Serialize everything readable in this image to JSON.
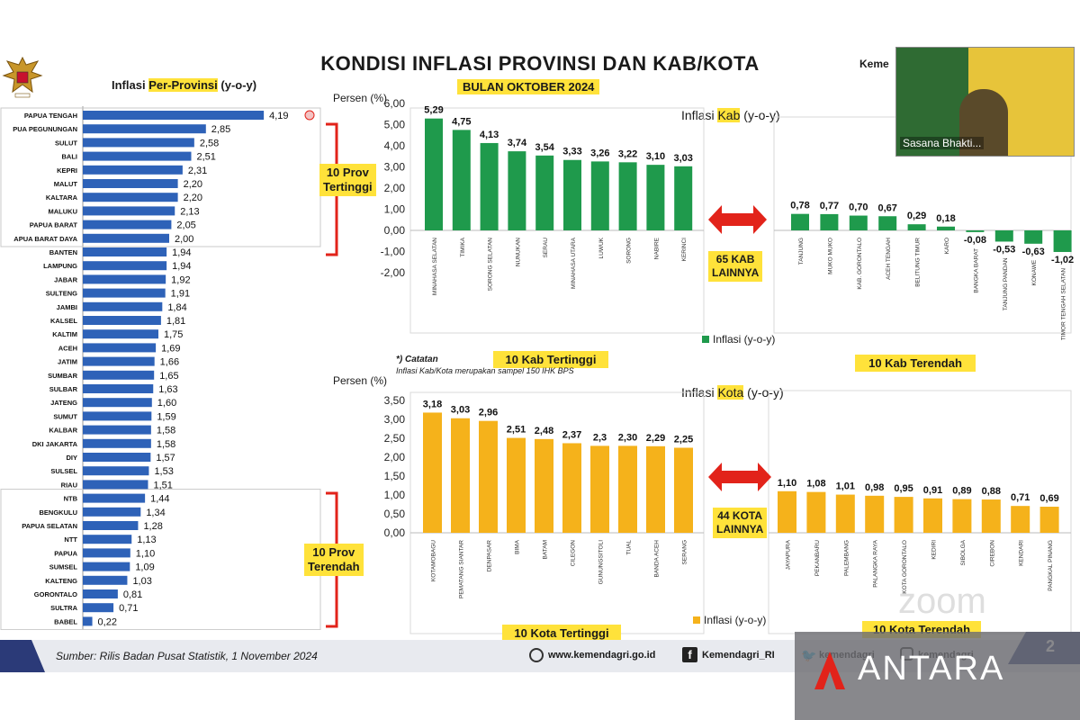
{
  "header": {
    "title": "KONDISI INFLASI PROVINSI DAN KAB/KOTA",
    "subtitle": "BULAN OKTOBER 2024",
    "top_right": "Keme"
  },
  "prov_panel": {
    "title_pre": "Inflasi ",
    "title_hl": "Per-Provinsi",
    "title_post": " (y-o-y)",
    "top_label": "10 Prov\nTertinggi",
    "bottom_label": "10 Prov\nTerendah"
  },
  "kab_panel": {
    "unit": "Persen (%)",
    "title_pre": "Inflasi ",
    "title_hl": "Kab",
    "title_post": " (y-o-y)",
    "middle_label": "65 KAB\nLAINNYA",
    "legend": "Inflasi (y-o-y)",
    "high_caption": "10 Kab Tertinggi",
    "low_caption": "10 Kab Terendah",
    "note_title": "*) Catatan",
    "note_text": "Inflasi Kab/Kota merupakan sampel 150 IHK BPS"
  },
  "kota_panel": {
    "unit": "Persen (%)",
    "title_pre": "Inflasi ",
    "title_hl": "Kota",
    "title_post": " (y-o-y)",
    "middle_label": "44 KOTA\nLAINNYA",
    "legend": "Inflasi (y-o-y)",
    "high_caption": "10 Kota Tertinggi",
    "low_caption": "10 Kota Terendah"
  },
  "footer": {
    "source": "Sumber: Rilis Badan Pusat Statistik,  1 November 2024",
    "website": "www.kemendagri.go.id",
    "facebook": "Kemendagri_RI",
    "twitter": "kemendagri",
    "instagram": "kemendagri",
    "page_number": "2"
  },
  "video": {
    "name": "Sasana Bhakti..."
  },
  "watermark": {
    "text": "ANTARA",
    "zoom": "zoom"
  },
  "colors": {
    "prov_bar": "#2e62b8",
    "kab_bar": "#1f9a4c",
    "kota_bar": "#f5b21b",
    "bracket": "#e2231a",
    "arrow": "#e2231a",
    "highlight": "#ffe23a"
  },
  "chart_data": [
    {
      "type": "bar",
      "orientation": "horizontal",
      "title": "Inflasi Per-Provinsi (y-o-y)",
      "categories": [
        "PAPUA TENGAH",
        "PUA PEGUNUNGAN",
        "SULUT",
        "BALI",
        "KEPRI",
        "MALUT",
        "KALTARA",
        "MALUKU",
        "PAPUA BARAT",
        "APUA BARAT DAYA",
        "BANTEN",
        "LAMPUNG",
        "JABAR",
        "SULTENG",
        "JAMBI",
        "KALSEL",
        "KALTIM",
        "ACEH",
        "JATIM",
        "SUMBAR",
        "SULBAR",
        "JATENG",
        "SUMUT",
        "KALBAR",
        "DKI JAKARTA",
        "DIY",
        "SULSEL",
        "RIAU",
        "NTB",
        "BENGKULU",
        "PAPUA SELATAN",
        "NTT",
        "PAPUA",
        "SUMSEL",
        "KALTENG",
        "GORONTALO",
        "SULTRA",
        "BABEL"
      ],
      "values": [
        4.19,
        2.85,
        2.58,
        2.51,
        2.31,
        2.2,
        2.2,
        2.13,
        2.05,
        2.0,
        1.94,
        1.94,
        1.92,
        1.91,
        1.84,
        1.81,
        1.75,
        1.69,
        1.66,
        1.65,
        1.63,
        1.6,
        1.59,
        1.58,
        1.58,
        1.57,
        1.53,
        1.51,
        1.44,
        1.34,
        1.28,
        1.13,
        1.1,
        1.09,
        1.03,
        0.81,
        0.71,
        0.22
      ],
      "labels": [
        "4,19",
        "2,85",
        "2,58",
        "2,51",
        "2,31",
        "2,20",
        "2,20",
        "2,13",
        "2,05",
        "2,00",
        "1,94",
        "1,94",
        "1,92",
        "1,91",
        "1,84",
        "1,81",
        "1,75",
        "1,69",
        "1,66",
        "1,65",
        "1,63",
        "1,60",
        "1,59",
        "1,58",
        "1,58",
        "1,57",
        "1,53",
        "1,51",
        "1,44",
        "1,34",
        "1,28",
        "1,13",
        "1,10",
        "1,09",
        "1,03",
        "0,81",
        "0,71",
        "0,22"
      ]
    },
    {
      "type": "bar",
      "title": "Inflasi Kab (y-o-y) - 10 Kab Tertinggi",
      "ylabel": "Persen (%)",
      "ylim": [
        -2.0,
        6.0
      ],
      "yticks": [
        "6,00",
        "5,00",
        "4,00",
        "3,00",
        "2,00",
        "1,00",
        "0,00",
        "-1,00",
        "-2,00"
      ],
      "categories": [
        "MINAHASA SELATAN",
        "TIMIKA",
        "SORONG SELATAN",
        "NUNUKAN",
        "SERAU",
        "MINAHASA UTARA",
        "LUWUK",
        "SORONG",
        "NABIRE",
        "KERINCI"
      ],
      "values": [
        5.29,
        4.75,
        4.13,
        3.74,
        3.54,
        3.33,
        3.26,
        3.22,
        3.1,
        3.03
      ],
      "labels": [
        "5,29",
        "4,75",
        "4,13",
        "3,74",
        "3,54",
        "3,33",
        "3,26",
        "3,22",
        "3,10",
        "3,03"
      ]
    },
    {
      "type": "bar",
      "title": "Inflasi Kab (y-o-y) - 10 Kab Terendah",
      "ylim": [
        -2.0,
        6.0
      ],
      "categories": [
        "TANJUNG",
        "MUKO MUKO",
        "KAB. GORONTALO",
        "ACEH TENGAH",
        "BELITUNG TIMUR",
        "KARO",
        "BANGKA BARAT",
        "TANJUNG PANDAN",
        "KONAWE",
        "TIMOR TENGAH SELATAN"
      ],
      "values": [
        0.78,
        0.77,
        0.7,
        0.67,
        0.29,
        0.18,
        -0.08,
        -0.53,
        -0.63,
        -1.02
      ],
      "labels": [
        "0,78",
        "0,77",
        "0,70",
        "0,67",
        "0,29",
        "0,18",
        "-0,08",
        "-0,53",
        "-0,63",
        "-1,02"
      ]
    },
    {
      "type": "bar",
      "title": "Inflasi Kota (y-o-y) - 10 Kota Tertinggi",
      "ylabel": "Persen (%)",
      "ylim": [
        0,
        3.5
      ],
      "yticks": [
        "3,50",
        "3,00",
        "2,50",
        "2,00",
        "1,50",
        "1,00",
        "0,50",
        "0,00"
      ],
      "categories": [
        "KOTAMOBAGU",
        "PEMATANG SIANTAR",
        "DENPASAR",
        "BIMA",
        "BATAM",
        "CILEGON",
        "GUNUNGSITOLI",
        "TUAL",
        "BANDA ACEH",
        "SERANG"
      ],
      "values": [
        3.18,
        3.03,
        2.96,
        2.51,
        2.48,
        2.37,
        2.3,
        2.3,
        2.29,
        2.25
      ],
      "labels": [
        "3,18",
        "3,03",
        "2,96",
        "2,51",
        "2,48",
        "2,37",
        "2,3",
        "2,30",
        "2,29",
        "2,25"
      ]
    },
    {
      "type": "bar",
      "title": "Inflasi Kota (y-o-y) - 10 Kota Terendah",
      "ylim": [
        0,
        3.5
      ],
      "categories": [
        "JAYAPURA",
        "PEKANBARU",
        "PALEMBANG",
        "PALANGKA RAYA",
        "KOTA GORONTALO",
        "KEDIRI",
        "SIBOLGA",
        "CIREBON",
        "KENDARI",
        "PANGKAL PINANG"
      ],
      "values": [
        1.1,
        1.08,
        1.01,
        0.98,
        0.95,
        0.91,
        0.89,
        0.88,
        0.71,
        0.69
      ],
      "labels": [
        "1,10",
        "1,08",
        "1,01",
        "0,98",
        "0,95",
        "0,91",
        "0,89",
        "0,88",
        "0,71",
        "0,69"
      ]
    }
  ]
}
